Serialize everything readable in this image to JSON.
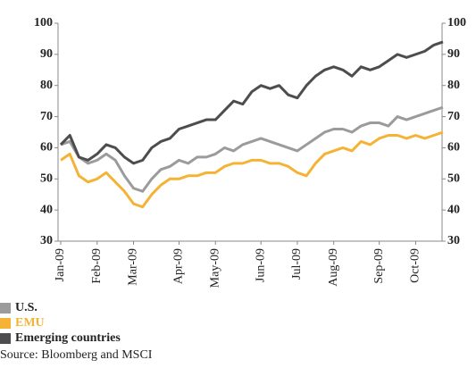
{
  "chart_data": {
    "type": "line",
    "categories": [
      "Jan-09",
      null,
      null,
      null,
      "Feb-09",
      null,
      null,
      null,
      "Mar-09",
      null,
      null,
      null,
      null,
      "Apr-09",
      null,
      null,
      null,
      "May-09",
      null,
      null,
      null,
      null,
      "Jun-09",
      null,
      null,
      null,
      "Jul-09",
      null,
      null,
      null,
      "Aug-09",
      null,
      null,
      null,
      null,
      "Sep-09",
      null,
      null,
      null,
      "Oct-09",
      null,
      null,
      null
    ],
    "series": [
      {
        "name": "U.S.",
        "color": "#9b9b9b",
        "values": [
          61,
          62,
          57,
          55,
          56,
          58,
          56,
          51,
          47,
          46,
          50,
          53,
          54,
          56,
          55,
          57,
          57,
          58,
          60,
          59,
          61,
          62,
          63,
          62,
          61,
          60,
          59,
          61,
          63,
          65,
          66,
          66,
          65,
          67,
          68,
          68,
          67,
          70,
          69,
          70,
          71,
          72,
          73
        ]
      },
      {
        "name": "EMU",
        "color": "#f5b335",
        "values": [
          56,
          58,
          51,
          49,
          50,
          52,
          49,
          46,
          42,
          41,
          45,
          48,
          50,
          50,
          51,
          51,
          52,
          52,
          54,
          55,
          55,
          56,
          56,
          55,
          55,
          54,
          52,
          51,
          55,
          58,
          59,
          60,
          59,
          62,
          61,
          63,
          64,
          64,
          63,
          64,
          63,
          64,
          65
        ]
      },
      {
        "name": "Emerging countries",
        "color": "#4d4d4f",
        "values": [
          61,
          64,
          57,
          56,
          58,
          61,
          60,
          57,
          55,
          56,
          60,
          62,
          63,
          66,
          67,
          68,
          69,
          69,
          72,
          75,
          74,
          78,
          80,
          79,
          80,
          77,
          76,
          80,
          83,
          85,
          86,
          85,
          83,
          86,
          85,
          86,
          88,
          90,
          89,
          90,
          91,
          93,
          94
        ]
      }
    ],
    "ylim": [
      30,
      100
    ],
    "yticks": [
      30,
      40,
      50,
      60,
      70,
      80,
      90,
      100
    ],
    "y2lim": [
      30,
      100
    ],
    "y2ticks": [
      30,
      40,
      50,
      60,
      70,
      80,
      90,
      100
    ],
    "source": "Source: Bloomberg and MSCI"
  }
}
